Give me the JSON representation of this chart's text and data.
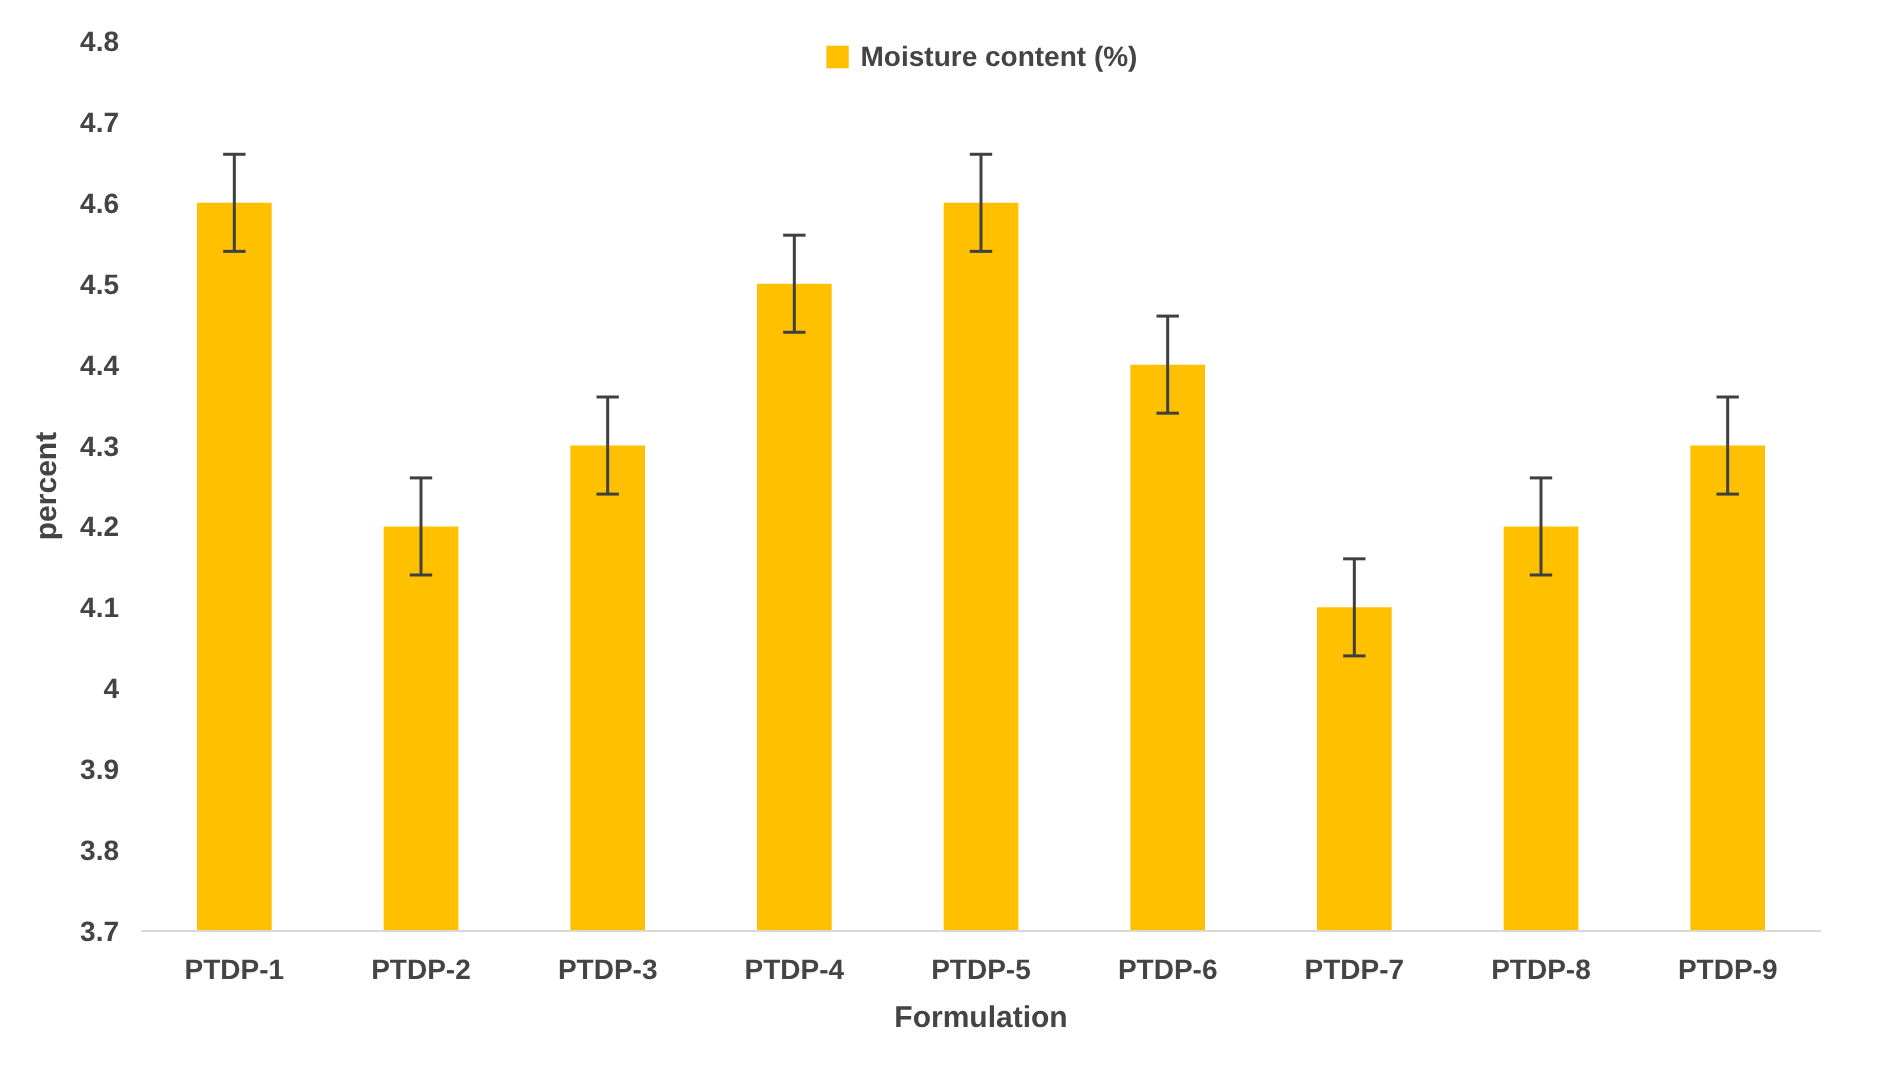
{
  "chart_data": {
    "type": "bar",
    "xlabel": "Formulation",
    "ylabel": "percent",
    "categories": [
      "PTDP-1",
      "PTDP-2",
      "PTDP-3",
      "PTDP-4",
      "PTDP-5",
      "PTDP-6",
      "PTDP-7",
      "PTDP-8",
      "PTDP-9"
    ],
    "series": [
      {
        "name": "Moisture content (%)",
        "color": "#ffc000",
        "values": [
          4.6,
          4.2,
          4.3,
          4.5,
          4.6,
          4.4,
          4.1,
          4.2,
          4.3
        ],
        "errors": [
          0.06,
          0.06,
          0.06,
          0.06,
          0.06,
          0.06,
          0.06,
          0.06,
          0.06
        ]
      }
    ],
    "ylim": [
      3.7,
      4.8
    ],
    "yticks": [
      3.7,
      3.8,
      3.9,
      4,
      4.1,
      4.2,
      4.3,
      4.4,
      4.5,
      4.6,
      4.7,
      4.8
    ],
    "grid": false,
    "legend": "top"
  }
}
